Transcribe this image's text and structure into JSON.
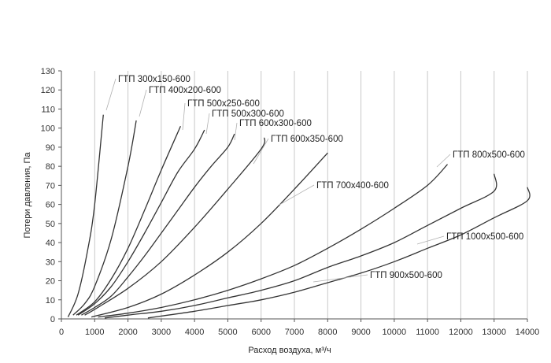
{
  "chart_data": {
    "type": "line",
    "title": "",
    "xlabel": "Расход воздуха, м³/ч",
    "ylabel": "Потери давления, Па",
    "xlim": [
      0,
      14000
    ],
    "ylim": [
      0,
      130
    ],
    "xticks": [
      0,
      1000,
      2000,
      3000,
      4000,
      5000,
      6000,
      7000,
      8000,
      9000,
      10000,
      11000,
      12000,
      13000,
      14000
    ],
    "yticks": [
      0,
      10,
      20,
      30,
      40,
      50,
      60,
      70,
      80,
      90,
      100,
      110,
      120,
      130
    ],
    "grid": {
      "x": true,
      "y": false
    },
    "legend": "labels on curves",
    "colors": {
      "line": "#333333",
      "grid": "#c8c8c8",
      "leader": "#b0b0b0"
    },
    "series": [
      {
        "name": "ГТП 300х150-600",
        "points": [
          [
            200,
            1
          ],
          [
            500,
            13
          ],
          [
            800,
            37
          ],
          [
            1000,
            60
          ],
          [
            1260,
            107
          ]
        ]
      },
      {
        "name": "ГТП 400х200-600",
        "points": [
          [
            350,
            2
          ],
          [
            700,
            8
          ],
          [
            1000,
            17
          ],
          [
            1500,
            42
          ],
          [
            2000,
            80
          ],
          [
            2250,
            104
          ]
        ]
      },
      {
        "name": "ГТП 500х250-600",
        "points": [
          [
            450,
            2
          ],
          [
            1000,
            9
          ],
          [
            1500,
            21
          ],
          [
            2000,
            37
          ],
          [
            2500,
            57
          ],
          [
            3000,
            78
          ],
          [
            3580,
            101
          ]
        ]
      },
      {
        "name": "ГТП 500х300-600",
        "points": [
          [
            500,
            2
          ],
          [
            1000,
            8
          ],
          [
            1500,
            17
          ],
          [
            2000,
            30
          ],
          [
            2500,
            45
          ],
          [
            3000,
            61
          ],
          [
            3500,
            77
          ],
          [
            4000,
            89
          ],
          [
            4300,
            99
          ]
        ]
      },
      {
        "name": "ГТП 600х300-600",
        "points": [
          [
            600,
            2
          ],
          [
            1000,
            6
          ],
          [
            1500,
            12
          ],
          [
            2000,
            22
          ],
          [
            2500,
            33
          ],
          [
            3000,
            45
          ],
          [
            3500,
            57
          ],
          [
            4000,
            69
          ],
          [
            4500,
            80
          ],
          [
            5000,
            90
          ],
          [
            5200,
            97
          ]
        ]
      },
      {
        "name": "ГТП 600х350-600",
        "points": [
          [
            700,
            2
          ],
          [
            1000,
            5
          ],
          [
            2000,
            16
          ],
          [
            3000,
            30
          ],
          [
            4000,
            48
          ],
          [
            5000,
            68
          ],
          [
            6000,
            89
          ],
          [
            6100,
            95
          ]
        ]
      },
      {
        "name": "ГТП 700х400-600",
        "points": [
          [
            900,
            1
          ],
          [
            2000,
            6
          ],
          [
            3000,
            13
          ],
          [
            4000,
            23
          ],
          [
            5000,
            35
          ],
          [
            6000,
            50
          ],
          [
            7000,
            68
          ],
          [
            8000,
            87
          ]
        ]
      },
      {
        "name": "ГТП 800х500-600",
        "points": [
          [
            1100,
            1
          ],
          [
            2000,
            3
          ],
          [
            3000,
            6
          ],
          [
            4000,
            10
          ],
          [
            5000,
            15
          ],
          [
            6000,
            21
          ],
          [
            7000,
            28
          ],
          [
            8000,
            37
          ],
          [
            9000,
            47
          ],
          [
            10000,
            58
          ],
          [
            11000,
            70
          ],
          [
            11600,
            81
          ]
        ]
      },
      {
        "name": "ГТП 900х500-600",
        "points": [
          [
            1300,
            0.5
          ],
          [
            2000,
            2
          ],
          [
            3000,
            4
          ],
          [
            4000,
            7
          ],
          [
            5000,
            11
          ],
          [
            6000,
            15
          ],
          [
            7000,
            20
          ],
          [
            8000,
            27
          ],
          [
            9000,
            33
          ],
          [
            10000,
            40
          ],
          [
            11000,
            49
          ],
          [
            12000,
            58
          ],
          [
            13000,
            67
          ],
          [
            13000,
            76
          ]
        ]
      },
      {
        "name": "ГТП 1000х500-600",
        "points": [
          [
            2600,
            0.5
          ],
          [
            3000,
            1.5
          ],
          [
            4000,
            4
          ],
          [
            5000,
            7
          ],
          [
            6000,
            10
          ],
          [
            7000,
            14
          ],
          [
            8000,
            19
          ],
          [
            9000,
            24
          ],
          [
            10000,
            30
          ],
          [
            11000,
            37
          ],
          [
            12000,
            44
          ],
          [
            13000,
            53
          ],
          [
            14000,
            62
          ],
          [
            14000,
            69
          ]
        ]
      }
    ]
  }
}
